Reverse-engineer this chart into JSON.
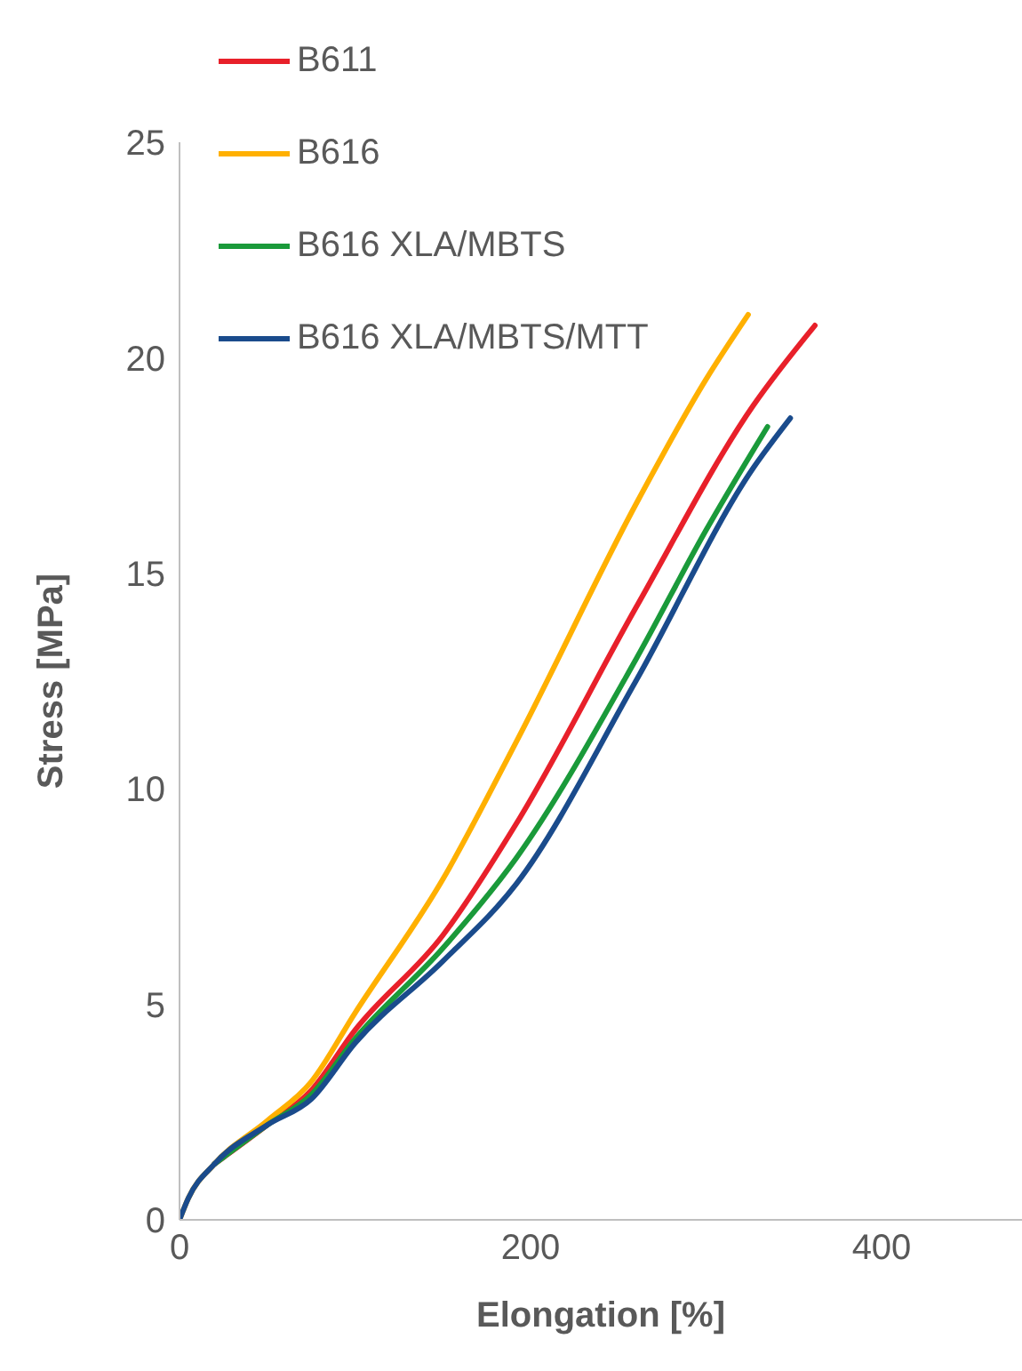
{
  "chart_data": {
    "type": "line",
    "xlabel": "Elongation [%]",
    "ylabel": "Stress [MPa]",
    "xlim": [
      0,
      480
    ],
    "xticks": [
      0,
      200,
      400
    ],
    "ylim": [
      0,
      25
    ],
    "yticks": [
      0,
      5,
      10,
      15,
      20,
      25
    ],
    "grid": false,
    "legend": "top left",
    "marker": "none",
    "line_style": "solid",
    "series": [
      {
        "name": "B611",
        "color": "#e8202a",
        "x": [
          20,
          50,
          75,
          100,
          150,
          192,
          260,
          327,
          362
        ],
        "values": [
          1.3,
          2.2,
          3.0,
          4.4,
          6.6,
          9.2,
          14.2,
          18.9,
          20.75
        ]
      },
      {
        "name": "B616",
        "color": "#ffb000",
        "x": [
          0,
          5,
          20,
          50,
          75,
          100,
          150,
          192,
          260,
          300,
          324
        ],
        "values": [
          0,
          0.5,
          1.3,
          2.3,
          3.2,
          4.8,
          7.9,
          11.1,
          16.6,
          19.5,
          21.0
        ]
      },
      {
        "name": "B616 XLA/MBTS",
        "color": "#1a9a3a",
        "x": [
          20,
          50,
          75,
          100,
          150,
          192,
          260,
          300,
          335
        ],
        "values": [
          1.3,
          2.2,
          2.9,
          4.2,
          6.3,
          8.4,
          13.0,
          16.0,
          18.4
        ]
      },
      {
        "name": "B616 XLA/MBTS/MTT",
        "color": "#1a4b8c",
        "x": [
          0,
          5,
          20,
          50,
          75,
          100,
          150,
          192,
          260,
          327,
          348
        ],
        "values": [
          0,
          0.5,
          1.3,
          2.2,
          2.8,
          4.1,
          6.0,
          7.8,
          12.5,
          17.45,
          18.6
        ]
      }
    ]
  }
}
